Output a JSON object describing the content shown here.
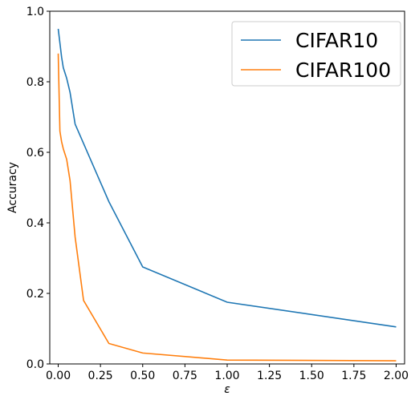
{
  "chart_data": {
    "type": "line",
    "xlabel": "ε",
    "ylabel": "Accuracy",
    "xlim": [
      -0.05,
      2.05
    ],
    "ylim": [
      0,
      1.0
    ],
    "xticks": [
      "0.00",
      "0.25",
      "0.50",
      "0.75",
      "1.00",
      "1.25",
      "1.50",
      "1.75",
      "2.00"
    ],
    "yticks": [
      "0.0",
      "0.2",
      "0.4",
      "0.6",
      "0.8",
      "1.0"
    ],
    "grid": false,
    "legend_position": "top-right",
    "series": [
      {
        "name": "CIFAR10",
        "color": "#1f77b4",
        "x": [
          0.0,
          0.01,
          0.02,
          0.03,
          0.05,
          0.07,
          0.1,
          0.3,
          0.5,
          1.0,
          2.0
        ],
        "y": [
          0.95,
          0.91,
          0.87,
          0.84,
          0.81,
          0.77,
          0.68,
          0.46,
          0.275,
          0.175,
          0.105
        ]
      },
      {
        "name": "CIFAR100",
        "color": "#ff7f0e",
        "x": [
          0.0,
          0.01,
          0.02,
          0.03,
          0.05,
          0.07,
          0.1,
          0.15,
          0.3,
          0.5,
          1.0,
          2.0
        ],
        "y": [
          0.88,
          0.66,
          0.63,
          0.61,
          0.58,
          0.52,
          0.36,
          0.18,
          0.058,
          0.031,
          0.011,
          0.009
        ]
      }
    ]
  }
}
